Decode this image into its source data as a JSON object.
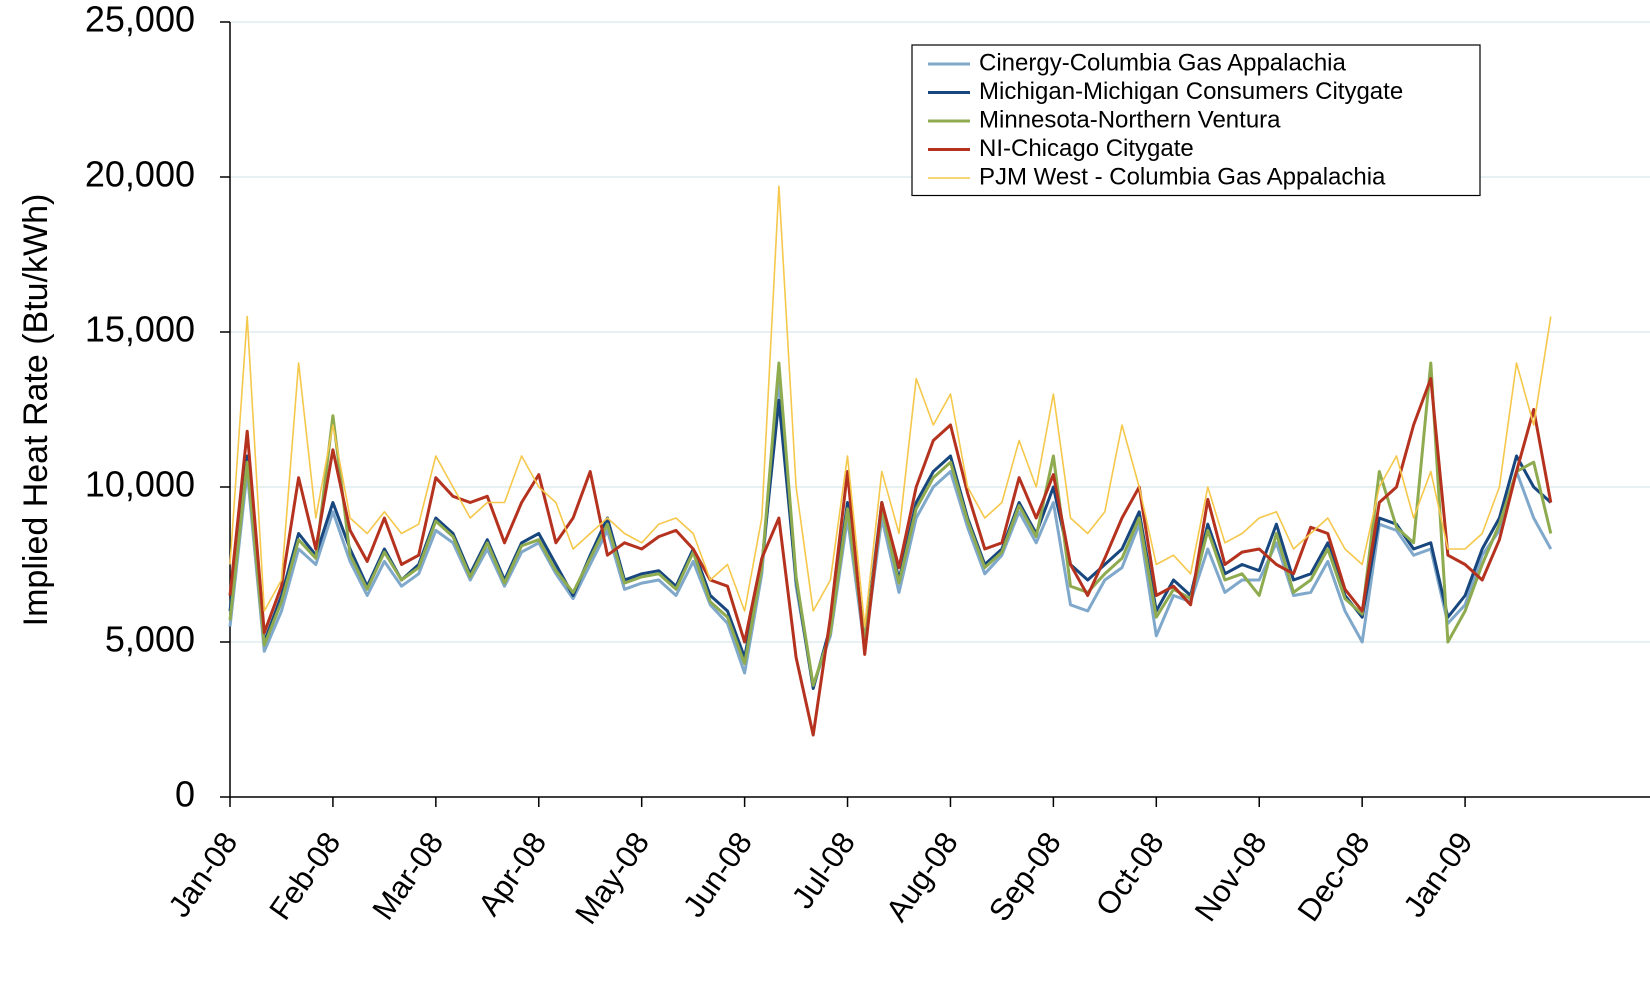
{
  "chart_data": {
    "type": "line",
    "y_label": "Implied Heat Rate (Btu/kWh)",
    "categories": [
      "Jan-08",
      null,
      null,
      null,
      null,
      null,
      "Feb-08",
      null,
      null,
      null,
      null,
      null,
      "Mar-08",
      null,
      null,
      null,
      null,
      null,
      "Apr-08",
      null,
      null,
      null,
      null,
      null,
      "May-08",
      null,
      null,
      null,
      null,
      null,
      "Jun-08",
      null,
      null,
      null,
      null,
      null,
      "Jul-08",
      null,
      null,
      null,
      null,
      null,
      "Aug-08",
      null,
      null,
      null,
      null,
      null,
      "Sep-08",
      null,
      null,
      null,
      null,
      null,
      "Oct-08",
      null,
      null,
      null,
      null,
      null,
      "Nov-08",
      null,
      null,
      null,
      null,
      null,
      "Dec-08",
      null,
      null,
      null,
      null,
      null,
      "Jan-09",
      null,
      null,
      null,
      null,
      null
    ],
    "series": [
      {
        "name": "Cinergy-Columbia Gas Appalachia",
        "color": "#7fa8cb",
        "width": 3,
        "values": [
          5500,
          10500,
          4700,
          6000,
          8000,
          7500,
          9200,
          7600,
          6500,
          7600,
          6800,
          7200,
          8600,
          8200,
          7000,
          8000,
          6800,
          7900,
          8200,
          7200,
          6400,
          7500,
          8600,
          6700,
          6900,
          7000,
          6500,
          7600,
          6200,
          5600,
          4000,
          7200,
          13500,
          6800,
          3600,
          5200,
          9000,
          4800,
          9000,
          6600,
          9000,
          10000,
          10500,
          8700,
          7200,
          7800,
          9200,
          8200,
          9500,
          6200,
          6000,
          7000,
          7400,
          8800,
          5200,
          6500,
          6300,
          8000,
          6600,
          7000,
          7000,
          8200,
          6500,
          6600,
          7600,
          6000,
          5000,
          8800,
          8600,
          7800,
          8000,
          5600,
          6200,
          7800,
          8600,
          10500,
          9000,
          8000
        ]
      },
      {
        "name": "Michigan-Michigan Consumers Citygate",
        "color": "#17477e",
        "width": 3,
        "values": [
          6000,
          11000,
          5000,
          6500,
          8500,
          7800,
          9500,
          8000,
          6800,
          8000,
          7000,
          7500,
          9000,
          8500,
          7200,
          8300,
          7000,
          8200,
          8500,
          7500,
          6500,
          7800,
          9000,
          7000,
          7200,
          7300,
          6800,
          8000,
          6500,
          6000,
          4500,
          7500,
          12800,
          7000,
          3500,
          5500,
          9500,
          5000,
          9500,
          7000,
          9500,
          10500,
          11000,
          9000,
          7500,
          8000,
          9500,
          8500,
          10000,
          7500,
          7000,
          7500,
          8000,
          9200,
          6000,
          7000,
          6500,
          8800,
          7200,
          7500,
          7300,
          8800,
          7000,
          7200,
          8200,
          6500,
          5800,
          9000,
          8800,
          8000,
          8200,
          5800,
          6500,
          8000,
          9000,
          11000,
          10000,
          9500
        ]
      },
      {
        "name": "Minnesota-Northern Ventura",
        "color": "#8fab50",
        "width": 3,
        "values": [
          5700,
          10800,
          4900,
          6300,
          8300,
          7700,
          12300,
          7800,
          6700,
          7900,
          7000,
          7400,
          8900,
          8400,
          7100,
          8200,
          6900,
          8100,
          8300,
          7300,
          6600,
          7700,
          8800,
          6900,
          7100,
          7200,
          6700,
          7900,
          6300,
          5800,
          4300,
          7400,
          14000,
          7100,
          3600,
          5300,
          9300,
          5000,
          9300,
          6900,
          9300,
          10300,
          10800,
          8900,
          7400,
          7900,
          9400,
          8400,
          11000,
          6800,
          6600,
          7200,
          7700,
          9000,
          5800,
          6700,
          6400,
          8600,
          7000,
          7200,
          6500,
          8500,
          6600,
          7000,
          8000,
          6400,
          5900,
          10500,
          8700,
          8200,
          14000,
          5000,
          6000,
          7500,
          8800,
          10500,
          10800,
          8500
        ]
      },
      {
        "name": "NI-Chicago Citygate",
        "color": "#b5321f",
        "width": 3,
        "values": [
          6500,
          11800,
          5300,
          6800,
          10300,
          8000,
          11200,
          8600,
          7600,
          9000,
          7500,
          7800,
          10300,
          9700,
          9500,
          9700,
          8200,
          9500,
          10400,
          8200,
          9000,
          10500,
          7800,
          8200,
          8000,
          8400,
          8600,
          8000,
          7000,
          6800,
          5000,
          7700,
          9000,
          4500,
          2000,
          5800,
          10500,
          4600,
          9500,
          7400,
          10000,
          11500,
          12000,
          9800,
          8000,
          8200,
          10300,
          9000,
          10400,
          7500,
          6500,
          7700,
          9000,
          10000,
          6500,
          6800,
          6200,
          9600,
          7500,
          7900,
          8000,
          7500,
          7200,
          8700,
          8500,
          6700,
          6000,
          9500,
          10000,
          12000,
          13500,
          7800,
          7500,
          7000,
          8300,
          10500,
          12500,
          9500
        ]
      },
      {
        "name": "PJM West - Columbia Gas Appalachia",
        "color": "#f5c84c",
        "width": 1.6,
        "values": [
          7500,
          15500,
          6000,
          7000,
          14000,
          9000,
          12000,
          9000,
          8500,
          9200,
          8500,
          8800,
          11000,
          10000,
          9000,
          9500,
          9500,
          11000,
          10000,
          9500,
          8000,
          8500,
          9000,
          8500,
          8200,
          8800,
          9000,
          8500,
          7000,
          7500,
          6000,
          9000,
          19700,
          10000,
          6000,
          7000,
          11000,
          5500,
          10500,
          8500,
          13500,
          12000,
          13000,
          10000,
          9000,
          9500,
          11500,
          10000,
          13000,
          9000,
          8500,
          9200,
          12000,
          10000,
          7500,
          7800,
          7200,
          10000,
          8200,
          8500,
          9000,
          9200,
          8000,
          8500,
          9000,
          8000,
          7500,
          10000,
          11000,
          9000,
          10500,
          8000,
          8000,
          8500,
          10000,
          14000,
          12000,
          15500
        ]
      }
    ],
    "ylim": [
      0,
      25000
    ],
    "yticks": [
      0,
      {
        "value": 5000,
        "label": "5,000"
      },
      {
        "value": 10000,
        "label": "10,000"
      },
      {
        "value": 15000,
        "label": "15,000"
      },
      {
        "value": 20000,
        "label": "20,000"
      },
      {
        "value": 25000,
        "label": "25,000"
      }
    ],
    "grid": true,
    "legend": "upper right"
  }
}
